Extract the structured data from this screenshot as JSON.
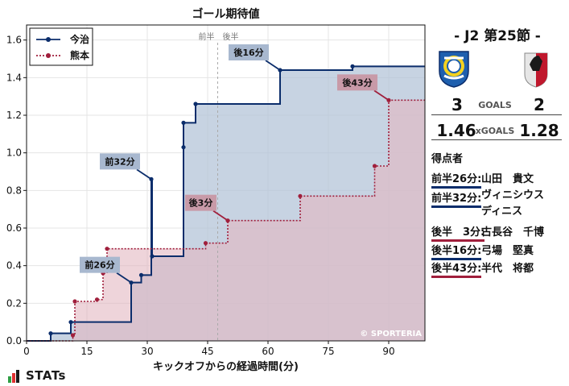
{
  "chart_data": {
    "type": "line",
    "step": true,
    "title": "ゴール期待値",
    "xlabel": "キックオフからの経過時間(分)",
    "ylabel": "",
    "xlim": [
      0,
      99
    ],
    "ylim": [
      0,
      1.68
    ],
    "xticks": [
      0,
      15,
      30,
      45,
      60,
      75,
      90
    ],
    "yticks": [
      0.0,
      0.2,
      0.4,
      0.6,
      0.8,
      1.0,
      1.2,
      1.4,
      1.6
    ],
    "ytick_labels": [
      "0.0",
      "0.2",
      "0.4",
      "0.6",
      "0.8",
      "1.0",
      "1.2",
      "1.4",
      "1.6"
    ],
    "halftime_minute": 47.5,
    "halftime_labels": [
      "前半",
      "後半"
    ],
    "legend_position": "top-left",
    "watermark": "© SPORTERIA",
    "series": [
      {
        "name": "今治",
        "color": "#0b2d6b",
        "fill": "#b4c4d8",
        "style": "solid",
        "points": [
          [
            0,
            0.0
          ],
          [
            6,
            0.04
          ],
          [
            11,
            0.1
          ],
          [
            26,
            0.31
          ],
          [
            28.5,
            0.35
          ],
          [
            31,
            0.86
          ],
          [
            31.2,
            0.45
          ],
          [
            39,
            1.03
          ],
          [
            39,
            1.16
          ],
          [
            42,
            1.26
          ],
          [
            63,
            1.44
          ],
          [
            81,
            1.46
          ],
          [
            99,
            1.46
          ]
        ]
      },
      {
        "name": "熊本",
        "color": "#a01f3c",
        "fill": "#e2b8c2",
        "style": "dotted",
        "points": [
          [
            0,
            0.0
          ],
          [
            11.5,
            0.03
          ],
          [
            12,
            0.21
          ],
          [
            17.5,
            0.22
          ],
          [
            19,
            0.36
          ],
          [
            20,
            0.49
          ],
          [
            44.5,
            0.52
          ],
          [
            50,
            0.64
          ],
          [
            68,
            0.77
          ],
          [
            86.5,
            0.93
          ],
          [
            90,
            1.28
          ],
          [
            99,
            1.28
          ]
        ]
      }
    ],
    "annotations": [
      {
        "label": "前32分",
        "x": 31,
        "y": 0.86,
        "team": "今治"
      },
      {
        "label": "前26分",
        "x": 26,
        "y": 0.31,
        "team": "今治"
      },
      {
        "label": "後16分",
        "x": 63,
        "y": 1.44,
        "team": "今治"
      },
      {
        "label": "後3分",
        "x": 50,
        "y": 0.64,
        "team": "熊本"
      },
      {
        "label": "後43分",
        "x": 90,
        "y": 1.28,
        "team": "熊本"
      }
    ]
  },
  "match": {
    "title": "-  J2 第25節  -",
    "home_goals": "3",
    "away_goals": "2",
    "goals_label": "GOALS",
    "home_xg": "1.46",
    "away_xg": "1.28",
    "xg_label": "xGOALS"
  },
  "scorers_title": "得点者",
  "scorers": [
    {
      "time": "前半26分:",
      "name": "山田　貴文",
      "color": "#0b2d6b"
    },
    {
      "time": "前半32分:",
      "name": "ヴィニシウス\nディニス",
      "color": "#0b2d6b"
    },
    {
      "time": "後半　3分:",
      "name": "古長谷　千博",
      "color": "#a01f3c"
    },
    {
      "time": "後半16分:",
      "name": "弓場　堅真",
      "color": "#0b2d6b"
    },
    {
      "time": "後半43分:",
      "name": "半代　将都",
      "color": "#a01f3c"
    }
  ],
  "brand": "STATs"
}
